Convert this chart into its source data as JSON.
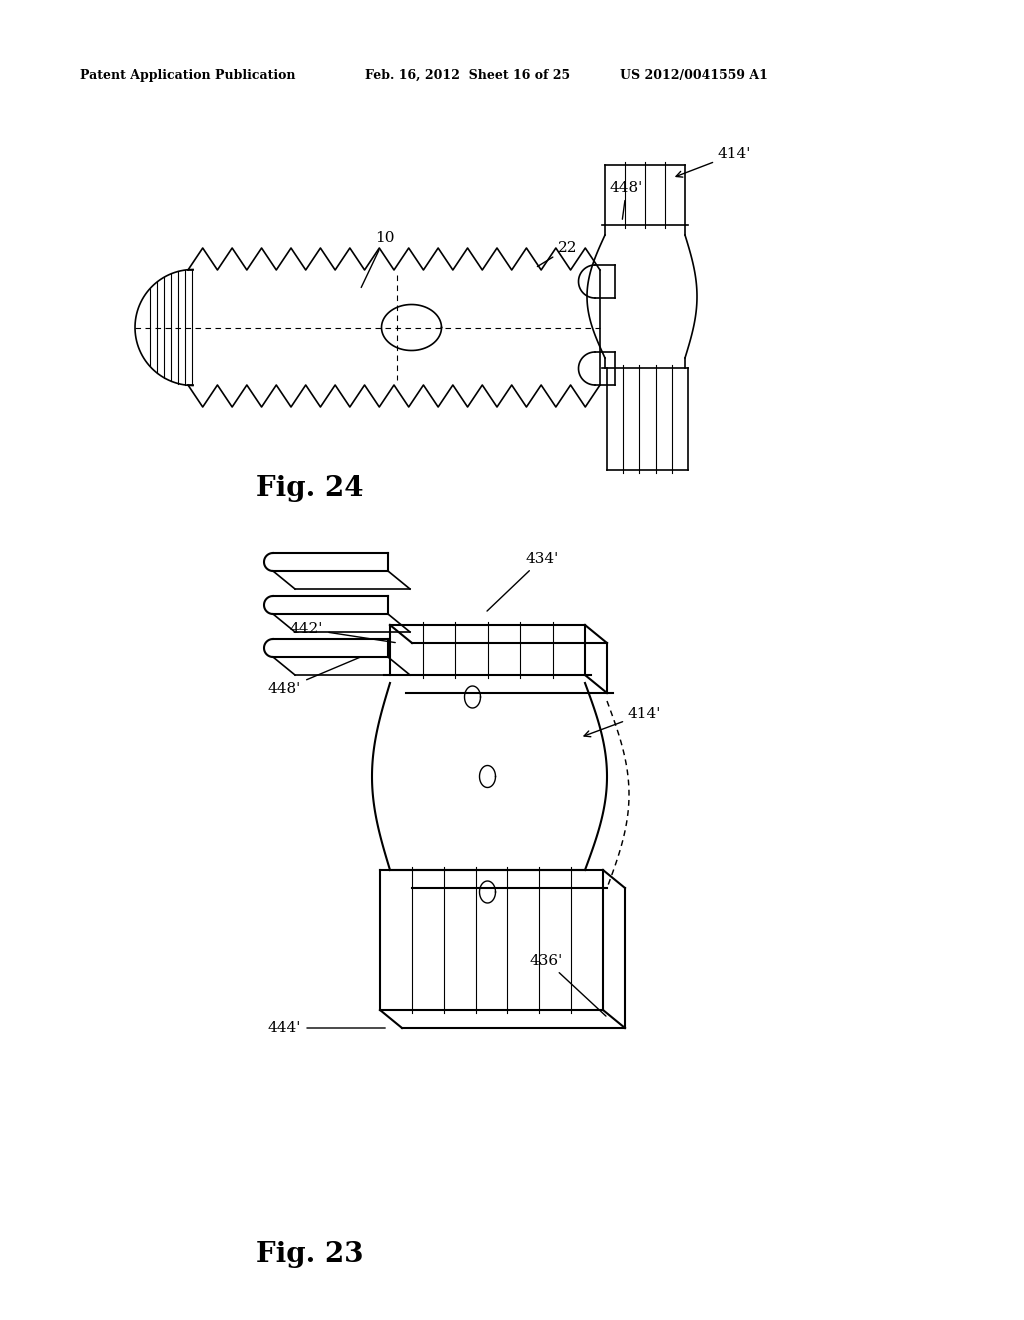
{
  "bg_color": "#ffffff",
  "line_color": "#000000",
  "header_text": "Patent Application Publication",
  "header_date": "Feb. 16, 2012  Sheet 16 of 25",
  "header_patent": "US 2012/0041559 A1",
  "fig24_label": "Fig. 24",
  "fig23_label": "Fig. 23"
}
